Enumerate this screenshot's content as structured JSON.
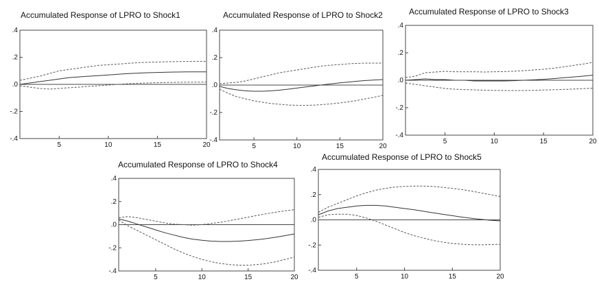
{
  "chart_data": [
    {
      "type": "line",
      "title": "Accumulated Response of LPRO to Shock1",
      "xlim": [
        1,
        20
      ],
      "ylim": [
        -0.4,
        0.4
      ],
      "xticks": [
        5,
        10,
        15,
        20
      ],
      "xtick_labels": [
        "5",
        "10",
        "15",
        "20"
      ],
      "yticks": [
        0.4,
        0.2,
        0.0,
        -0.2,
        -0.4
      ],
      "ytick_labels": [
        ".4",
        ".2",
        ".0",
        "-.2",
        "-.4"
      ],
      "x": [
        1,
        2,
        3,
        4,
        5,
        6,
        7,
        8,
        9,
        10,
        11,
        12,
        13,
        14,
        15,
        16,
        17,
        18,
        19,
        20
      ],
      "series": [
        {
          "role": "response",
          "values": [
            0.0,
            0.01,
            0.02,
            0.03,
            0.04,
            0.05,
            0.055,
            0.06,
            0.065,
            0.07,
            0.075,
            0.08,
            0.083,
            0.086,
            0.088,
            0.09,
            0.091,
            0.092,
            0.092,
            0.092
          ]
        },
        {
          "role": "upper",
          "values": [
            0.03,
            0.045,
            0.06,
            0.08,
            0.1,
            0.11,
            0.12,
            0.13,
            0.14,
            0.145,
            0.15,
            0.155,
            0.16,
            0.163,
            0.165,
            0.167,
            0.168,
            0.169,
            0.17,
            0.17
          ]
        },
        {
          "role": "lower",
          "values": [
            -0.01,
            -0.02,
            -0.03,
            -0.035,
            -0.03,
            -0.025,
            -0.02,
            -0.015,
            -0.01,
            -0.005,
            0.0,
            0.005,
            0.008,
            0.01,
            0.012,
            0.014,
            0.015,
            0.016,
            0.016,
            0.017
          ]
        }
      ]
    },
    {
      "type": "line",
      "title": "Accumulated Response of LPRO to Shock2",
      "xlim": [
        1,
        20
      ],
      "ylim": [
        -0.4,
        0.4
      ],
      "xticks": [
        5,
        10,
        15,
        20
      ],
      "xtick_labels": [
        "5",
        "10",
        "15",
        "20"
      ],
      "yticks": [
        0.4,
        0.2,
        0.0,
        -0.2,
        -0.4
      ],
      "ytick_labels": [
        ".4",
        ".2",
        ".0",
        "-.2",
        "-.4"
      ],
      "x": [
        1,
        2,
        3,
        4,
        5,
        6,
        7,
        8,
        9,
        10,
        11,
        12,
        13,
        14,
        15,
        16,
        17,
        18,
        19,
        20
      ],
      "series": [
        {
          "role": "response",
          "values": [
            -0.01,
            -0.025,
            -0.035,
            -0.042,
            -0.045,
            -0.045,
            -0.042,
            -0.037,
            -0.03,
            -0.022,
            -0.014,
            -0.006,
            0.002,
            0.009,
            0.016,
            0.022,
            0.028,
            0.033,
            0.037,
            0.04
          ]
        },
        {
          "role": "upper",
          "values": [
            0.01,
            0.015,
            0.02,
            0.03,
            0.045,
            0.06,
            0.075,
            0.09,
            0.1,
            0.11,
            0.12,
            0.13,
            0.14,
            0.145,
            0.15,
            0.155,
            0.158,
            0.16,
            0.16,
            0.16
          ]
        },
        {
          "role": "lower",
          "values": [
            -0.03,
            -0.06,
            -0.085,
            -0.1,
            -0.115,
            -0.125,
            -0.135,
            -0.14,
            -0.145,
            -0.148,
            -0.148,
            -0.146,
            -0.142,
            -0.137,
            -0.13,
            -0.122,
            -0.112,
            -0.1,
            -0.088,
            -0.075
          ]
        }
      ]
    },
    {
      "type": "line",
      "title": "Accumulated Response of LPRO to Shock3",
      "xlim": [
        1,
        20
      ],
      "ylim": [
        -0.4,
        0.4
      ],
      "xticks": [
        5,
        10,
        15,
        20
      ],
      "xtick_labels": [
        "5",
        "10",
        "15",
        "20"
      ],
      "yticks": [
        0.4,
        0.2,
        0.0,
        -0.2,
        -0.4
      ],
      "ytick_labels": [
        ".4",
        ".2",
        ".0",
        "-.2",
        "-.4"
      ],
      "x": [
        1,
        2,
        3,
        4,
        5,
        6,
        7,
        8,
        9,
        10,
        11,
        12,
        13,
        14,
        15,
        16,
        17,
        18,
        19,
        20
      ],
      "series": [
        {
          "role": "response",
          "values": [
            0.0,
            0.005,
            0.01,
            0.005,
            0.005,
            0.0,
            0.0,
            -0.005,
            -0.005,
            -0.005,
            -0.005,
            -0.003,
            0.0,
            0.003,
            0.007,
            0.012,
            0.018,
            0.024,
            0.03,
            0.037
          ]
        },
        {
          "role": "upper",
          "values": [
            0.02,
            0.03,
            0.055,
            0.06,
            0.065,
            0.062,
            0.062,
            0.062,
            0.06,
            0.062,
            0.063,
            0.066,
            0.07,
            0.075,
            0.08,
            0.088,
            0.097,
            0.108,
            0.118,
            0.13
          ]
        },
        {
          "role": "lower",
          "values": [
            -0.02,
            -0.03,
            -0.04,
            -0.05,
            -0.06,
            -0.065,
            -0.068,
            -0.07,
            -0.072,
            -0.074,
            -0.075,
            -0.075,
            -0.075,
            -0.073,
            -0.071,
            -0.069,
            -0.067,
            -0.064,
            -0.061,
            -0.058
          ]
        }
      ]
    },
    {
      "type": "line",
      "title": "Accumulated Response of LPRO to Shock4",
      "xlim": [
        1,
        20
      ],
      "ylim": [
        -0.4,
        0.4
      ],
      "xticks": [
        5,
        10,
        15,
        20
      ],
      "xtick_labels": [
        "5",
        "10",
        "15",
        "20"
      ],
      "yticks": [
        0.4,
        0.2,
        0.0,
        -0.2,
        -0.4
      ],
      "ytick_labels": [
        ".4",
        ".2",
        ".0",
        "-.2",
        "-.4"
      ],
      "x": [
        1,
        2,
        3,
        4,
        5,
        6,
        7,
        8,
        9,
        10,
        11,
        12,
        13,
        14,
        15,
        16,
        17,
        18,
        19,
        20
      ],
      "series": [
        {
          "role": "response",
          "values": [
            0.05,
            0.03,
            0.005,
            -0.02,
            -0.045,
            -0.07,
            -0.09,
            -0.11,
            -0.125,
            -0.135,
            -0.142,
            -0.145,
            -0.145,
            -0.142,
            -0.137,
            -0.13,
            -0.12,
            -0.108,
            -0.095,
            -0.08
          ]
        },
        {
          "role": "upper",
          "values": [
            0.06,
            0.07,
            0.06,
            0.045,
            0.03,
            0.015,
            0.005,
            0.0,
            -0.005,
            0.0,
            0.01,
            0.02,
            0.035,
            0.05,
            0.065,
            0.08,
            0.095,
            0.108,
            0.12,
            0.13
          ]
        },
        {
          "role": "lower",
          "values": [
            0.04,
            -0.01,
            -0.05,
            -0.09,
            -0.13,
            -0.17,
            -0.21,
            -0.245,
            -0.275,
            -0.3,
            -0.32,
            -0.335,
            -0.345,
            -0.35,
            -0.35,
            -0.345,
            -0.335,
            -0.32,
            -0.3,
            -0.28
          ]
        }
      ]
    },
    {
      "type": "line",
      "title": "Accumulated Response of LPRO to Shock5",
      "xlim": [
        1,
        20
      ],
      "ylim": [
        -0.4,
        0.4
      ],
      "xticks": [
        5,
        10,
        15,
        20
      ],
      "xtick_labels": [
        "5",
        "10",
        "15",
        "20"
      ],
      "yticks": [
        0.4,
        0.2,
        0.0,
        -0.2,
        -0.4
      ],
      "ytick_labels": [
        ".4",
        ".2",
        ".0",
        "-.2",
        "-.4"
      ],
      "x": [
        1,
        2,
        3,
        4,
        5,
        6,
        7,
        8,
        9,
        10,
        11,
        12,
        13,
        14,
        15,
        16,
        17,
        18,
        19,
        20
      ],
      "series": [
        {
          "role": "response",
          "values": [
            0.04,
            0.07,
            0.09,
            0.1,
            0.11,
            0.115,
            0.115,
            0.11,
            0.1,
            0.09,
            0.08,
            0.068,
            0.056,
            0.044,
            0.033,
            0.022,
            0.012,
            0.004,
            -0.003,
            -0.008
          ]
        },
        {
          "role": "upper",
          "values": [
            0.06,
            0.1,
            0.13,
            0.16,
            0.19,
            0.215,
            0.235,
            0.25,
            0.26,
            0.265,
            0.268,
            0.268,
            0.265,
            0.258,
            0.25,
            0.24,
            0.228,
            0.214,
            0.2,
            0.185
          ]
        },
        {
          "role": "lower",
          "values": [
            0.02,
            0.04,
            0.045,
            0.045,
            0.035,
            0.015,
            -0.01,
            -0.04,
            -0.07,
            -0.1,
            -0.125,
            -0.145,
            -0.163,
            -0.177,
            -0.187,
            -0.193,
            -0.197,
            -0.198,
            -0.196,
            -0.194
          ]
        }
      ]
    }
  ]
}
